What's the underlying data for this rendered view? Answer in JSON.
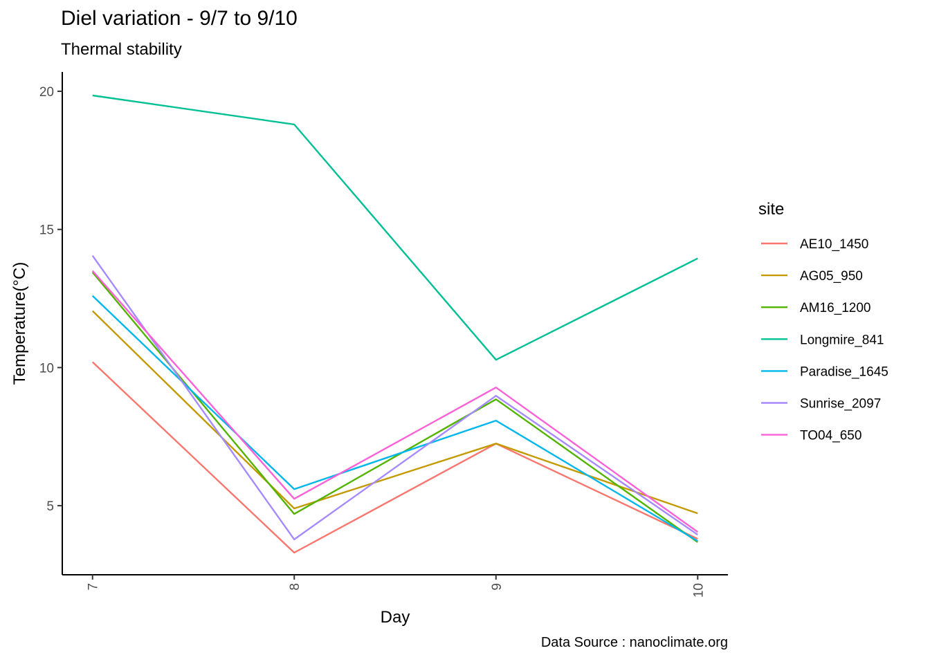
{
  "title": "Diel variation - 9/7 to 9/10",
  "subtitle": "Thermal stability",
  "caption": "Data Source : nanoclimate.org",
  "chart_data": {
    "type": "line",
    "xlabel": "Day",
    "ylabel": "Temperature(°C)",
    "x": [
      7,
      8,
      9,
      10
    ],
    "x_tick_labels": [
      "7",
      "8",
      "9",
      "10"
    ],
    "y_ticks": [
      5,
      10,
      15,
      20
    ],
    "y_tick_labels": [
      "5",
      "10",
      "15",
      "20"
    ],
    "xlim": [
      6.85,
      10.15
    ],
    "ylim": [
      2.5,
      20.7
    ],
    "x_tick_rotation": "vertical",
    "grid": false,
    "legend_title": "site",
    "legend_position": "right",
    "series": [
      {
        "name": "AE10_1450",
        "color": "#F8766D",
        "values": [
          10.2,
          3.3,
          7.25,
          3.8
        ]
      },
      {
        "name": "AG05_950",
        "color": "#C49A00",
        "values": [
          12.05,
          4.9,
          7.25,
          4.72
        ]
      },
      {
        "name": "AM16_1200",
        "color": "#53B400",
        "values": [
          13.45,
          4.7,
          8.85,
          3.68
        ]
      },
      {
        "name": "Longmire_841",
        "color": "#00C094",
        "values": [
          19.85,
          18.8,
          10.28,
          13.95
        ]
      },
      {
        "name": "Paradise_1645",
        "color": "#00B6EB",
        "values": [
          12.6,
          5.6,
          8.08,
          3.72
        ]
      },
      {
        "name": "Sunrise_2097",
        "color": "#A58AFF",
        "values": [
          14.05,
          3.78,
          8.98,
          3.95
        ]
      },
      {
        "name": "TO04_650",
        "color": "#FB61D7",
        "values": [
          13.5,
          5.25,
          9.28,
          4.05
        ]
      }
    ]
  }
}
